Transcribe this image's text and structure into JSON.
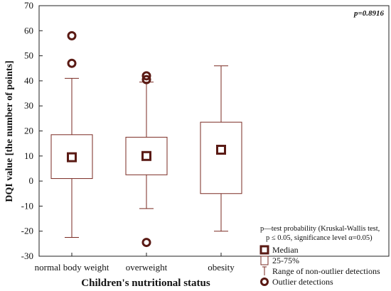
{
  "chart_data": {
    "type": "boxplot",
    "title": "",
    "xlabel": "Children's nutritional status",
    "ylabel": "DQI value [the number of points]",
    "ylim": [
      -30,
      70
    ],
    "yticks": [
      -30,
      -20,
      -10,
      0,
      10,
      20,
      30,
      40,
      50,
      60,
      70
    ],
    "grid": false,
    "categories": [
      "normal body weight",
      "overweight",
      "obesity"
    ],
    "boxes": [
      {
        "category": "normal body weight",
        "median": 9.5,
        "q1": 1,
        "q3": 18.5,
        "whisker_low": -22.5,
        "whisker_high": 41,
        "outliers": [
          47,
          58
        ]
      },
      {
        "category": "overweight",
        "median": 10,
        "q1": 2.5,
        "q3": 17.5,
        "whisker_low": -11,
        "whisker_high": 39.5,
        "outliers": [
          40.5,
          42,
          -24.5
        ]
      },
      {
        "category": "obesity",
        "median": 12.5,
        "q1": -5,
        "q3": 23.5,
        "whisker_low": -20,
        "whisker_high": 46,
        "outliers": []
      }
    ],
    "annotation": "p=0.8916",
    "note_lines": [
      "p—test probability (Kruskal-Wallis test,",
      "p ≤ 0.05, significance level α=0.05)"
    ],
    "legend": {
      "placement": "bottom-right",
      "items": [
        {
          "symbol": "median",
          "label": "Median"
        },
        {
          "symbol": "box",
          "label": "25-75%"
        },
        {
          "symbol": "whisker",
          "label": "Range of non-outlier detections"
        },
        {
          "symbol": "outlier",
          "label": "Outlier detections"
        }
      ]
    },
    "colors": {
      "stroke": "#7a2a22",
      "marker": "#5a1a14",
      "frame": "#222222"
    }
  }
}
